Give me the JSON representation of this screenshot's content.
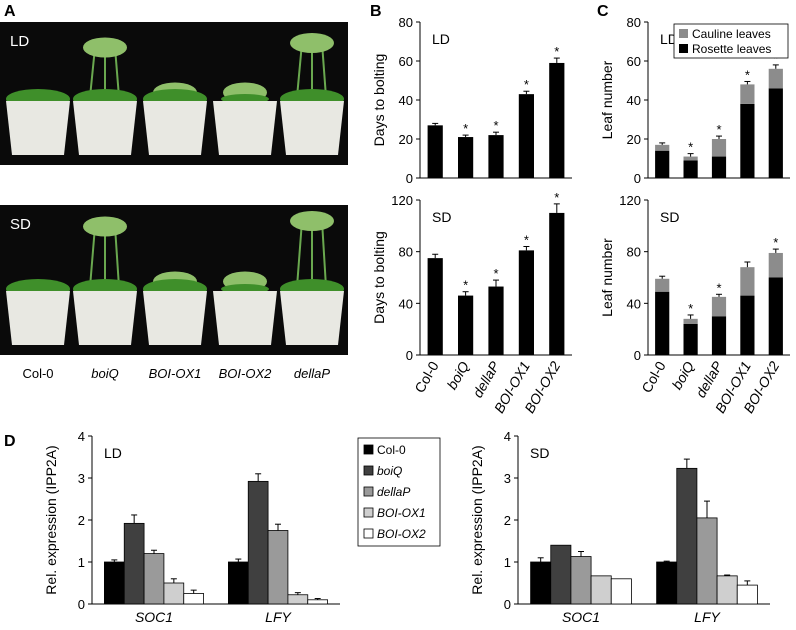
{
  "panel_letters": [
    "A",
    "B",
    "C",
    "D"
  ],
  "photos": {
    "conditions": [
      "LD",
      "SD"
    ],
    "genotypes": [
      "Col-0",
      "boiQ",
      "BOI-OX1",
      "BOI-OX2",
      "dellaP"
    ]
  },
  "chart_data": [
    {
      "type": "bar",
      "label": "LD",
      "ylabel": "Days to bolting",
      "color": "#000000",
      "values": [
        27,
        21,
        22,
        43,
        59
      ],
      "errors": [
        1,
        1,
        1.5,
        1.5,
        2.5
      ],
      "markers": [
        null,
        "*",
        "*",
        "*",
        "*"
      ],
      "ylim": [
        0,
        80
      ],
      "yticks": [
        0,
        20,
        40,
        60,
        80
      ]
    },
    {
      "type": "bar",
      "label": "SD",
      "ylabel": "Days to bolting",
      "color": "#000000",
      "categories": [
        "Col-0",
        "boiQ",
        "dellaP",
        "BOI-OX1",
        "BOI-OX2"
      ],
      "values": [
        75,
        46,
        53,
        81,
        110
      ],
      "errors": [
        3,
        3,
        5,
        3,
        7
      ],
      "markers": [
        null,
        "*",
        "*",
        "*",
        "*"
      ],
      "ylim": [
        0,
        120
      ],
      "yticks": [
        0,
        40,
        80,
        120
      ]
    },
    {
      "type": "bar",
      "stacked": true,
      "label": "LD",
      "ylabel": "Leaf number",
      "legend": "upper right",
      "series": [
        {
          "name": "Rosette leaves",
          "color": "#000000",
          "values": [
            14,
            9,
            11,
            38,
            46
          ]
        },
        {
          "name": "Cauline leaves",
          "color": "#8c8c8c",
          "values": [
            3,
            2,
            9,
            10,
            10
          ],
          "errors": [
            1,
            1.5,
            1.5,
            1.5,
            2
          ]
        }
      ],
      "markers": [
        null,
        "*",
        "*",
        "*",
        "*"
      ],
      "ylim": [
        0,
        80
      ],
      "yticks": [
        0,
        20,
        40,
        60,
        80
      ]
    },
    {
      "type": "bar",
      "stacked": true,
      "label": "SD",
      "ylabel": "Leaf number",
      "categories": [
        "Col-0",
        "boiQ",
        "dellaP",
        "BOI-OX1",
        "BOI-OX2"
      ],
      "series": [
        {
          "color": "#000000",
          "values": [
            49,
            24,
            30,
            46,
            60
          ]
        },
        {
          "color": "#8c8c8c",
          "values": [
            10,
            4,
            15,
            22,
            19
          ],
          "errors": [
            2,
            3,
            2,
            4,
            3
          ]
        }
      ],
      "markers": [
        null,
        "*",
        "*",
        null,
        "*"
      ],
      "ylim": [
        0,
        120
      ],
      "yticks": [
        0,
        40,
        80,
        120
      ]
    },
    {
      "type": "bar",
      "label": "LD",
      "ylabel": "Rel. expression (IPP2A)",
      "legend": "right",
      "categories": [
        "SOC1",
        "LFY"
      ],
      "series": [
        {
          "name": "Col-0",
          "color": "#000000",
          "values": [
            1,
            1
          ],
          "errors": [
            0.05,
            0.07
          ]
        },
        {
          "name": "boiQ",
          "color": "#404040",
          "values": [
            1.92,
            2.92
          ],
          "errors": [
            0.2,
            0.18
          ]
        },
        {
          "name": "dellaP",
          "color": "#9a9a9a",
          "values": [
            1.2,
            1.75
          ],
          "errors": [
            0.08,
            0.15
          ]
        },
        {
          "name": "BOI-OX1",
          "color": "#cfcfcf",
          "values": [
            0.5,
            0.22
          ],
          "errors": [
            0.1,
            0.05
          ]
        },
        {
          "name": "BOI-OX2",
          "color": "#ffffff",
          "values": [
            0.25,
            0.1
          ],
          "errors": [
            0.08,
            0.03
          ]
        }
      ],
      "ylim": [
        0,
        4
      ],
      "yticks": [
        0,
        1,
        2,
        3,
        4
      ]
    },
    {
      "type": "bar",
      "label": "SD",
      "ylabel": "Rel. expression (IPP2A)",
      "categories": [
        "SOC1",
        "LFY"
      ],
      "series": [
        {
          "color": "#000000",
          "values": [
            1,
            1
          ],
          "errors": [
            0.1,
            0.02
          ]
        },
        {
          "color": "#404040",
          "values": [
            1.4,
            3.23
          ],
          "errors": [
            0,
            0.22
          ]
        },
        {
          "color": "#9a9a9a",
          "values": [
            1.13,
            2.05
          ],
          "errors": [
            0.12,
            0.4
          ]
        },
        {
          "color": "#cfcfcf",
          "values": [
            0.67,
            0.67
          ],
          "errors": [
            0,
            0.02
          ]
        },
        {
          "color": "#ffffff",
          "values": [
            0.6,
            0.45
          ],
          "errors": [
            0,
            0.1
          ]
        }
      ],
      "ylim": [
        0,
        4
      ],
      "yticks": [
        0,
        1,
        2,
        3,
        4
      ]
    }
  ]
}
